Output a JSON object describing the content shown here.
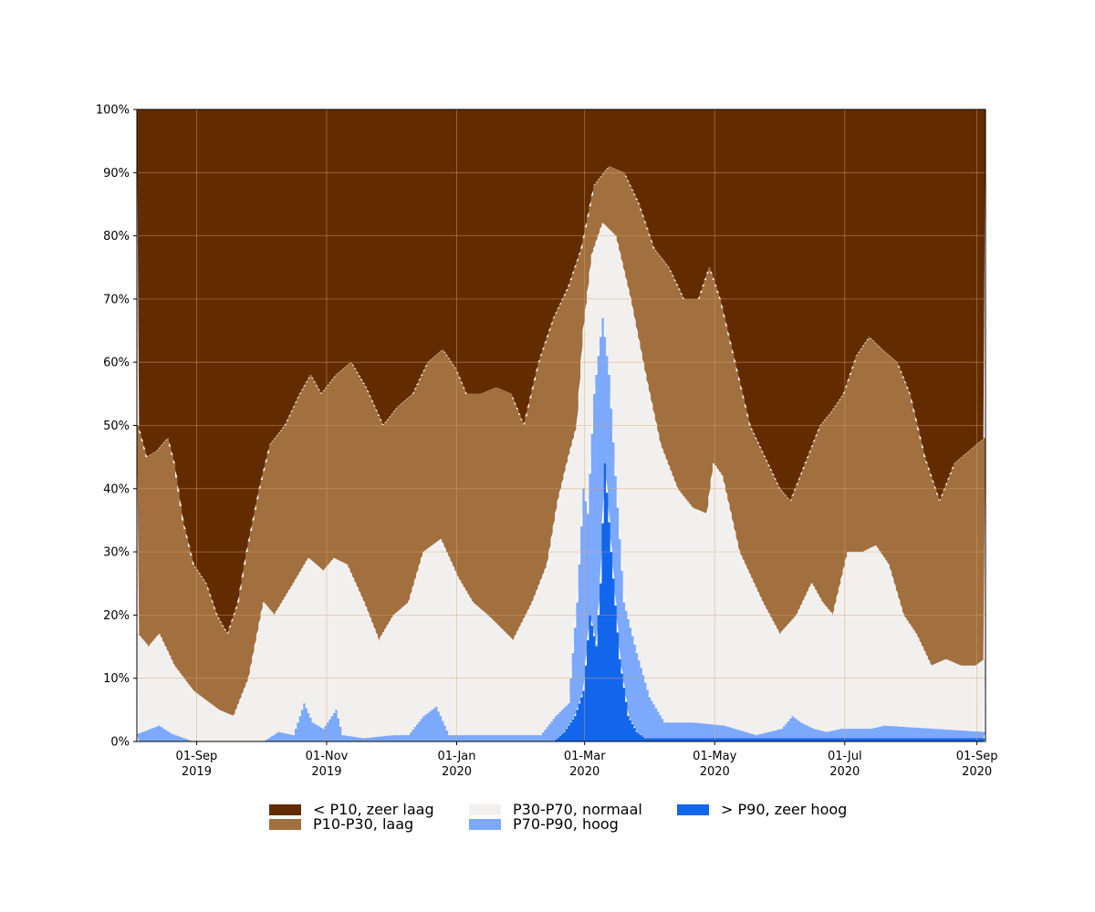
{
  "chart_data": {
    "type": "area",
    "stacked": true,
    "x_start": "2019-08-04",
    "x_end": "2020-09-04",
    "x_step_days": 1,
    "xticks": [
      {
        "date": "2019-09-01",
        "label": "01-Sep\n2019"
      },
      {
        "date": "2019-11-01",
        "label": "01-Nov\n2019"
      },
      {
        "date": "2020-01-01",
        "label": "01-Jan\n2020"
      },
      {
        "date": "2020-03-01",
        "label": "01-Mar\n2020"
      },
      {
        "date": "2020-05-01",
        "label": "01-May\n2020"
      },
      {
        "date": "2020-07-01",
        "label": "01-Jul\n2020"
      },
      {
        "date": "2020-09-01",
        "label": "01-Sep\n2020"
      }
    ],
    "ylim": [
      0,
      100
    ],
    "yticks": [
      0,
      10,
      20,
      30,
      40,
      50,
      60,
      70,
      80,
      90,
      100
    ],
    "ytick_suffix": "%",
    "grid": true,
    "legend_position": "bottom-center",
    "boundary_keyframes": {
      "p90": [
        [
          "2019-08-04",
          0
        ],
        [
          "2020-02-15",
          0
        ],
        [
          "2020-02-20",
          1.5
        ],
        [
          "2020-02-25",
          4
        ],
        [
          "2020-02-29",
          8
        ],
        [
          "2020-03-03",
          20
        ],
        [
          "2020-03-06",
          15
        ],
        [
          "2020-03-08",
          25
        ],
        [
          "2020-03-10",
          44
        ],
        [
          "2020-03-13",
          30
        ],
        [
          "2020-03-17",
          13
        ],
        [
          "2020-03-21",
          4
        ],
        [
          "2020-03-25",
          1.5
        ],
        [
          "2020-03-29",
          0.5
        ],
        [
          "2020-09-04",
          0.5
        ]
      ],
      "p70": [
        [
          "2019-08-04",
          1.2
        ],
        [
          "2019-08-14",
          2.5
        ],
        [
          "2019-08-20",
          1.2
        ],
        [
          "2019-08-30",
          0
        ],
        [
          "2019-10-02",
          0
        ],
        [
          "2019-10-09",
          1.5
        ],
        [
          "2019-10-16",
          1
        ],
        [
          "2019-10-21",
          6
        ],
        [
          "2019-10-25",
          3
        ],
        [
          "2019-10-30",
          2
        ],
        [
          "2019-11-05",
          5
        ],
        [
          "2019-11-08",
          1
        ],
        [
          "2019-11-18",
          0.5
        ],
        [
          "2019-12-02",
          1
        ],
        [
          "2019-12-09",
          1
        ],
        [
          "2019-12-16",
          4
        ],
        [
          "2019-12-22",
          5.5
        ],
        [
          "2019-12-28",
          1
        ],
        [
          "2020-02-09",
          1
        ],
        [
          "2020-02-16",
          4
        ],
        [
          "2020-02-22",
          6
        ],
        [
          "2020-02-26",
          22
        ],
        [
          "2020-02-29",
          40
        ],
        [
          "2020-03-02",
          36
        ],
        [
          "2020-03-05",
          55
        ],
        [
          "2020-03-09",
          67
        ],
        [
          "2020-03-12",
          58
        ],
        [
          "2020-03-15",
          42
        ],
        [
          "2020-03-19",
          22
        ],
        [
          "2020-03-25",
          14
        ],
        [
          "2020-03-31",
          7
        ],
        [
          "2020-04-07",
          3
        ],
        [
          "2020-04-20",
          3
        ],
        [
          "2020-05-05",
          2.5
        ],
        [
          "2020-05-20",
          1
        ],
        [
          "2020-06-01",
          2
        ],
        [
          "2020-06-06",
          4
        ],
        [
          "2020-06-10",
          3
        ],
        [
          "2020-06-16",
          2
        ],
        [
          "2020-06-22",
          1.5
        ],
        [
          "2020-06-29",
          2
        ],
        [
          "2020-07-13",
          2
        ],
        [
          "2020-07-19",
          2.5
        ],
        [
          "2020-09-04",
          1.5
        ]
      ],
      "p30": [
        [
          "2019-08-04",
          17
        ],
        [
          "2019-08-09",
          15
        ],
        [
          "2019-08-14",
          17
        ],
        [
          "2019-08-21",
          12
        ],
        [
          "2019-08-30",
          8
        ],
        [
          "2019-09-11",
          5
        ],
        [
          "2019-09-18",
          4
        ],
        [
          "2019-09-25",
          10
        ],
        [
          "2019-10-02",
          22
        ],
        [
          "2019-10-07",
          20
        ],
        [
          "2019-10-16",
          25
        ],
        [
          "2019-10-23",
          29
        ],
        [
          "2019-10-30",
          27
        ],
        [
          "2019-11-04",
          29
        ],
        [
          "2019-11-10",
          28
        ],
        [
          "2019-11-18",
          22
        ],
        [
          "2019-11-25",
          16
        ],
        [
          "2019-12-02",
          20
        ],
        [
          "2019-12-09",
          22
        ],
        [
          "2019-12-16",
          30
        ],
        [
          "2019-12-24",
          32
        ],
        [
          "2020-01-01",
          26
        ],
        [
          "2020-01-08",
          22
        ],
        [
          "2020-01-15",
          20
        ],
        [
          "2020-01-27",
          16
        ],
        [
          "2020-02-05",
          22
        ],
        [
          "2020-02-12",
          28
        ],
        [
          "2020-02-17",
          38
        ],
        [
          "2020-02-22",
          45
        ],
        [
          "2020-02-26",
          50
        ],
        [
          "2020-02-29",
          65
        ],
        [
          "2020-03-04",
          77
        ],
        [
          "2020-03-09",
          82
        ],
        [
          "2020-03-15",
          80
        ],
        [
          "2020-03-22",
          70
        ],
        [
          "2020-03-29",
          58
        ],
        [
          "2020-04-05",
          47
        ],
        [
          "2020-04-13",
          40
        ],
        [
          "2020-04-20",
          37
        ],
        [
          "2020-04-27",
          36
        ],
        [
          "2020-04-30",
          44
        ],
        [
          "2020-05-04",
          42
        ],
        [
          "2020-05-12",
          30
        ],
        [
          "2020-05-23",
          22
        ],
        [
          "2020-05-31",
          17
        ],
        [
          "2020-06-08",
          20
        ],
        [
          "2020-06-15",
          25
        ],
        [
          "2020-06-20",
          22
        ],
        [
          "2020-06-25",
          20
        ],
        [
          "2020-07-02",
          30
        ],
        [
          "2020-07-09",
          30
        ],
        [
          "2020-07-15",
          31
        ],
        [
          "2020-07-21",
          28
        ],
        [
          "2020-07-28",
          20
        ],
        [
          "2020-08-03",
          17
        ],
        [
          "2020-08-10",
          12
        ],
        [
          "2020-08-17",
          13
        ],
        [
          "2020-08-24",
          12
        ],
        [
          "2020-08-31",
          12
        ],
        [
          "2020-09-04",
          13
        ]
      ],
      "p10": [
        [
          "2019-08-04",
          50
        ],
        [
          "2019-08-08",
          45
        ],
        [
          "2019-08-13",
          46
        ],
        [
          "2019-08-18",
          48
        ],
        [
          "2019-08-21",
          44
        ],
        [
          "2019-08-25",
          35
        ],
        [
          "2019-08-30",
          28
        ],
        [
          "2019-09-05",
          25
        ],
        [
          "2019-09-10",
          20
        ],
        [
          "2019-09-15",
          17
        ],
        [
          "2019-09-20",
          22
        ],
        [
          "2019-09-24",
          30
        ],
        [
          "2019-09-30",
          40
        ],
        [
          "2019-10-05",
          47
        ],
        [
          "2019-10-12",
          50
        ],
        [
          "2019-10-19",
          55
        ],
        [
          "2019-10-24",
          58
        ],
        [
          "2019-10-29",
          55
        ],
        [
          "2019-11-05",
          58
        ],
        [
          "2019-11-12",
          60
        ],
        [
          "2019-11-19",
          56
        ],
        [
          "2019-11-27",
          50
        ],
        [
          "2019-12-04",
          53
        ],
        [
          "2019-12-11",
          55
        ],
        [
          "2019-12-18",
          60
        ],
        [
          "2019-12-25",
          62
        ],
        [
          "2019-12-31",
          59
        ],
        [
          "2020-01-05",
          55
        ],
        [
          "2020-01-12",
          55
        ],
        [
          "2020-01-19",
          56
        ],
        [
          "2020-01-26",
          55
        ],
        [
          "2020-02-01",
          50
        ],
        [
          "2020-02-08",
          60
        ],
        [
          "2020-02-15",
          67
        ],
        [
          "2020-02-22",
          72
        ],
        [
          "2020-02-28",
          78
        ],
        [
          "2020-03-05",
          88
        ],
        [
          "2020-03-12",
          91
        ],
        [
          "2020-03-19",
          90
        ],
        [
          "2020-03-26",
          85
        ],
        [
          "2020-04-02",
          78
        ],
        [
          "2020-04-09",
          75
        ],
        [
          "2020-04-16",
          70
        ],
        [
          "2020-04-23",
          70
        ],
        [
          "2020-04-28",
          75
        ],
        [
          "2020-05-03",
          70
        ],
        [
          "2020-05-10",
          60
        ],
        [
          "2020-05-17",
          50
        ],
        [
          "2020-05-24",
          45
        ],
        [
          "2020-05-31",
          40
        ],
        [
          "2020-06-05",
          38
        ],
        [
          "2020-06-12",
          44
        ],
        [
          "2020-06-19",
          50
        ],
        [
          "2020-06-24",
          52
        ],
        [
          "2020-06-30",
          55
        ],
        [
          "2020-07-06",
          61
        ],
        [
          "2020-07-12",
          64
        ],
        [
          "2020-07-18",
          62
        ],
        [
          "2020-07-25",
          60
        ],
        [
          "2020-07-31",
          55
        ],
        [
          "2020-08-07",
          45
        ],
        [
          "2020-08-14",
          38
        ],
        [
          "2020-08-21",
          44
        ],
        [
          "2020-08-28",
          46
        ],
        [
          "2020-09-04",
          48
        ]
      ]
    },
    "series": [
      {
        "name": "< P10, zeer laag",
        "color": "#632c00",
        "band": [
          "p10",
          100
        ]
      },
      {
        "name": "P10-P30, laag",
        "color": "#a26f3f",
        "band": [
          "p30",
          "p10"
        ]
      },
      {
        "name": "P30-P70, normaal",
        "color": "#f2f0ef",
        "band": [
          "p70",
          "p30"
        ]
      },
      {
        "name": "P70-P90, hoog",
        "color": "#7da9fd",
        "band": [
          "p90",
          "p70"
        ]
      },
      {
        "name": "> P90, zeer hoog",
        "color": "#1266ec",
        "band": [
          0,
          "p90"
        ]
      }
    ],
    "legend": [
      {
        "label": "< P10, zeer laag",
        "color": "#632c00"
      },
      {
        "label": "P10-P30, laag",
        "color": "#a26f3f"
      },
      {
        "label": "P30-P70, normaal",
        "color": "#f2f0ef"
      },
      {
        "label": "P70-P90, hoog",
        "color": "#7da9fd"
      },
      {
        "label": "> P90, zeer hoog",
        "color": "#1266ec"
      }
    ]
  }
}
